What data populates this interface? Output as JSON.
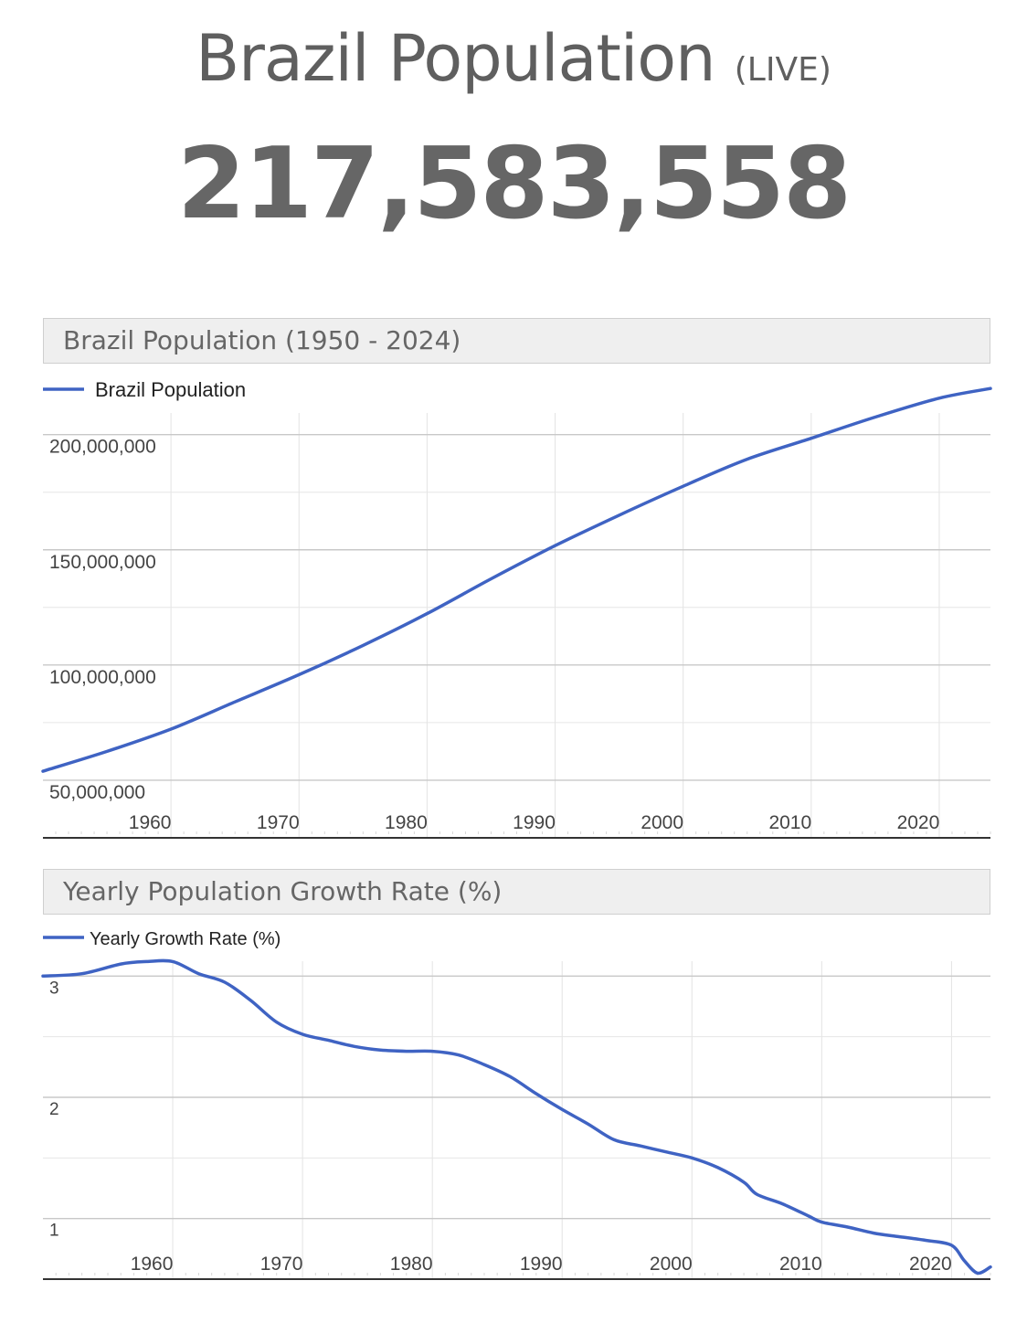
{
  "header": {
    "title": "Brazil Population",
    "live_tag": "(LIVE)",
    "live_count": "217,583,558"
  },
  "chart_data": [
    {
      "type": "line",
      "title": "Brazil Population (1950 - 2024)",
      "xlabel": "",
      "ylabel": "",
      "legend": "Brazil Population",
      "legend_position": "top-left",
      "grid": true,
      "color": "#3f63c3",
      "xlim": [
        1950,
        2024
      ],
      "ylim": [
        25000000,
        230000000
      ],
      "x_ticks": [
        1960,
        1970,
        1980,
        1990,
        2000,
        2010,
        2020
      ],
      "y_ticks": [
        50000000,
        100000000,
        150000000,
        200000000
      ],
      "y_tick_labels": [
        "50,000,000",
        "100,000,000",
        "150,000,000",
        "200,000,000"
      ],
      "series": [
        {
          "name": "Brazil Population",
          "x": [
            1950,
            1955,
            1960,
            1965,
            1970,
            1975,
            1980,
            1985,
            1990,
            1995,
            2000,
            2005,
            2010,
            2015,
            2020,
            2024
          ],
          "y": [
            53900000,
            62500000,
            72200000,
            84000000,
            95800000,
            108500000,
            122300000,
            137400000,
            151800000,
            165000000,
            177600000,
            189300000,
            198400000,
            207600000,
            215800000,
            220000000
          ]
        }
      ]
    },
    {
      "type": "line",
      "title": "Yearly Population Growth Rate (%)",
      "xlabel": "",
      "ylabel": "",
      "legend": "Yearly Growth Rate (%)",
      "legend_position": "top-left",
      "grid": true,
      "color": "#3f63c3",
      "xlim": [
        1950,
        2023
      ],
      "ylim": [
        0.5,
        3.5
      ],
      "x_ticks": [
        1960,
        1970,
        1980,
        1990,
        2000,
        2010,
        2020
      ],
      "y_ticks": [
        1,
        2,
        3
      ],
      "y_tick_labels": [
        "1",
        "2",
        "3"
      ],
      "series": [
        {
          "name": "Yearly Growth Rate (%)",
          "x": [
            1950,
            1953,
            1956,
            1958,
            1960,
            1962,
            1964,
            1966,
            1968,
            1970,
            1972,
            1974,
            1976,
            1978,
            1980,
            1982,
            1984,
            1986,
            1988,
            1990,
            1992,
            1994,
            1996,
            1998,
            2000,
            2002,
            2004,
            2005,
            2007,
            2009,
            2010,
            2012,
            2014,
            2016,
            2018,
            2020,
            2021,
            2022,
            2023
          ],
          "y": [
            3.0,
            3.02,
            3.1,
            3.12,
            3.12,
            3.02,
            2.95,
            2.8,
            2.62,
            2.52,
            2.47,
            2.42,
            2.39,
            2.38,
            2.38,
            2.35,
            2.27,
            2.17,
            2.03,
            1.9,
            1.78,
            1.65,
            1.6,
            1.55,
            1.5,
            1.42,
            1.3,
            1.2,
            1.12,
            1.02,
            0.97,
            0.93,
            0.88,
            0.85,
            0.82,
            0.78,
            0.65,
            0.55,
            0.6
          ]
        }
      ]
    }
  ]
}
